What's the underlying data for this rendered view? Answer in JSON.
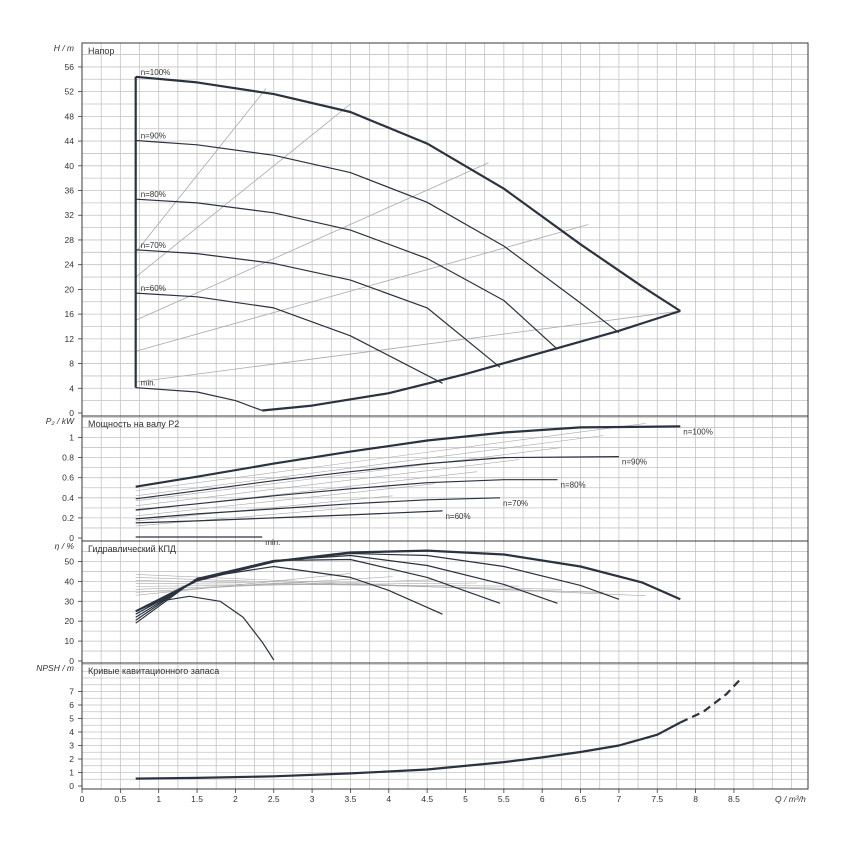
{
  "colors": {
    "grid": "#c4c4c4",
    "frame": "#3a3a3a",
    "curve": "#2b3340",
    "thin": "#a9a9a9",
    "text": "#333333"
  },
  "x_axis": {
    "label": "Q / m³/h",
    "ticks": [
      "0",
      "0.5",
      "1",
      "1.5",
      "2",
      "2.5",
      "3",
      "3.5",
      "4",
      "4.5",
      "5",
      "5.5",
      "6",
      "6.5",
      "7",
      "7.5",
      "8",
      "8.5"
    ]
  },
  "chart_data": [
    {
      "type": "line",
      "title": "Напор",
      "ylabel": "H / m",
      "xlim": [
        0,
        9.5
      ],
      "ylim": [
        0,
        60
      ],
      "yticks": [
        "0",
        "4",
        "8",
        "12",
        "16",
        "20",
        "24",
        "28",
        "32",
        "36",
        "40",
        "44",
        "48",
        "52",
        "56"
      ],
      "grid": true,
      "series": [
        {
          "name": "n=100%",
          "x": [
            0.7,
            1.5,
            2.5,
            3.5,
            4.5,
            5.5,
            6.5,
            7.3,
            7.8
          ],
          "y": [
            54.4,
            53.5,
            51.6,
            48.7,
            43.6,
            36.3,
            27.3,
            20.5,
            16.5
          ]
        },
        {
          "name": "n=90%",
          "x": [
            0.7,
            1.5,
            2.5,
            3.5,
            4.5,
            5.5,
            6.5,
            7.0
          ],
          "y": [
            44.1,
            43.4,
            41.7,
            38.9,
            34.1,
            27.0,
            17.8,
            13.0
          ]
        },
        {
          "name": "n=80%",
          "x": [
            0.7,
            1.5,
            2.5,
            3.5,
            4.5,
            5.5,
            6.2
          ],
          "y": [
            34.6,
            34.0,
            32.4,
            29.6,
            25.0,
            18.2,
            10.3
          ]
        },
        {
          "name": "n=70%",
          "x": [
            0.7,
            1.5,
            2.5,
            3.5,
            4.5,
            5.45
          ],
          "y": [
            26.4,
            25.8,
            24.2,
            21.5,
            17.0,
            7.4
          ]
        },
        {
          "name": "n=60%",
          "x": [
            0.7,
            1.5,
            2.5,
            3.5,
            4.7
          ],
          "y": [
            19.4,
            18.8,
            17.0,
            12.5,
            4.8
          ]
        },
        {
          "name": "min.",
          "x": [
            0.7,
            1.5,
            2.0,
            2.35
          ],
          "y": [
            4.1,
            3.4,
            2.0,
            0.4
          ]
        },
        {
          "name": "",
          "x": [
            2.35,
            3.0,
            4.0,
            5.0,
            6.0,
            7.0,
            7.8
          ],
          "y": [
            0.4,
            1.2,
            3.2,
            6.3,
            9.8,
            13.3,
            16.5
          ]
        }
      ]
    },
    {
      "type": "line",
      "title": "Мощность на валу P2",
      "ylabel": "P₂ / kW",
      "xlim": [
        0,
        9.5
      ],
      "ylim": [
        0,
        1.2
      ],
      "yticks": [
        "0",
        "0.2",
        "0.4",
        "0.6",
        "0.8",
        "1"
      ],
      "grid": true,
      "series": [
        {
          "name": "n=100%",
          "x": [
            0.7,
            1.5,
            2.5,
            3.5,
            4.5,
            5.5,
            6.5,
            7.8
          ],
          "y": [
            0.51,
            0.61,
            0.74,
            0.86,
            0.97,
            1.05,
            1.1,
            1.11
          ]
        },
        {
          "name": "n=90%",
          "x": [
            0.7,
            1.5,
            2.5,
            3.5,
            4.5,
            5.5,
            7.0
          ],
          "y": [
            0.39,
            0.47,
            0.57,
            0.66,
            0.74,
            0.8,
            0.81
          ]
        },
        {
          "name": "n=80%",
          "x": [
            0.7,
            1.5,
            2.5,
            3.5,
            4.5,
            5.5,
            6.2
          ],
          "y": [
            0.28,
            0.34,
            0.42,
            0.49,
            0.55,
            0.58,
            0.58
          ]
        },
        {
          "name": "n=70%",
          "x": [
            0.7,
            1.5,
            2.5,
            3.5,
            4.5,
            5.45
          ],
          "y": [
            0.19,
            0.24,
            0.29,
            0.34,
            0.38,
            0.4
          ]
        },
        {
          "name": "n=60%",
          "x": [
            0.7,
            1.5,
            2.5,
            3.5,
            4.7
          ],
          "y": [
            0.15,
            0.17,
            0.2,
            0.23,
            0.27
          ]
        },
        {
          "name": "min.",
          "x": [
            0.7,
            1.5,
            2.35
          ],
          "y": [
            0.01,
            0.01,
            0.01
          ]
        }
      ]
    },
    {
      "type": "line",
      "title": "Гидравлический КПД",
      "ylabel": "η / %",
      "xlim": [
        0,
        9.5
      ],
      "ylim": [
        0,
        60
      ],
      "yticks": [
        "0",
        "10",
        "20",
        "30",
        "40",
        "50"
      ],
      "grid": true,
      "series": [
        {
          "name": "n=100%",
          "x": [
            0.7,
            1.5,
            2.5,
            3.5,
            4.5,
            5.5,
            6.5,
            7.3,
            7.8
          ],
          "y": [
            25.0,
            40.5,
            50.0,
            54.5,
            55.5,
            53.5,
            47.5,
            39.5,
            31.0
          ]
        },
        {
          "name": "n=90%",
          "x": [
            0.7,
            1.5,
            2.5,
            3.5,
            4.5,
            5.5,
            6.5,
            7.0
          ],
          "y": [
            23.5,
            40.5,
            50.0,
            54.0,
            53.0,
            47.5,
            38.0,
            31.0
          ]
        },
        {
          "name": "n=80%",
          "x": [
            0.7,
            1.5,
            2.5,
            3.5,
            4.5,
            5.5,
            6.2
          ],
          "y": [
            22.0,
            41.0,
            50.5,
            53.0,
            48.0,
            38.5,
            29.0
          ]
        },
        {
          "name": "n=70%",
          "x": [
            0.7,
            1.5,
            2.5,
            3.5,
            4.5,
            5.45
          ],
          "y": [
            20.5,
            41.5,
            50.5,
            51.0,
            42.0,
            29.0
          ]
        },
        {
          "name": "n=60%",
          "x": [
            0.7,
            1.5,
            2.5,
            3.5,
            4.0,
            4.7
          ],
          "y": [
            19.0,
            41.5,
            47.5,
            42.0,
            35.5,
            23.5
          ]
        },
        {
          "name": "min.",
          "x": [
            0.7,
            1.0,
            1.4,
            1.8,
            2.1,
            2.35,
            2.5
          ],
          "y": [
            25.0,
            30.0,
            32.5,
            30.0,
            22.0,
            9.5,
            0.5
          ]
        }
      ]
    },
    {
      "type": "line",
      "title": "Кривые кавитационного запаса",
      "ylabel": "NPSH / m",
      "xlim": [
        0,
        9.5
      ],
      "ylim": [
        0,
        8
      ],
      "yticks": [
        "0",
        "1",
        "2",
        "3",
        "4",
        "5",
        "6",
        "7"
      ],
      "grid": true,
      "series": [
        {
          "name": "",
          "x": [
            0.7,
            1.5,
            2.5,
            3.5,
            4.5,
            5.5,
            6.0,
            6.5,
            7.0,
            7.5,
            7.8
          ],
          "y": [
            0.55,
            0.6,
            0.72,
            0.93,
            1.22,
            1.77,
            2.12,
            2.52,
            3.0,
            3.8,
            4.7
          ]
        },
        {
          "name": "",
          "x": [
            7.8,
            8.1,
            8.4,
            8.6
          ],
          "y": [
            4.7,
            5.5,
            6.8,
            8.0
          ]
        }
      ]
    }
  ]
}
